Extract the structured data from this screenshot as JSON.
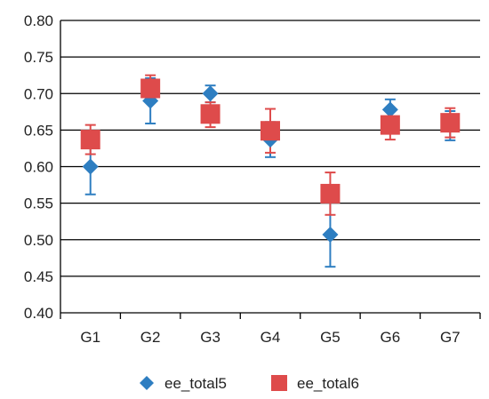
{
  "chart_data": {
    "type": "scatter",
    "title": "",
    "xlabel": "",
    "ylabel": "",
    "categories": [
      "G1",
      "G2",
      "G3",
      "G4",
      "G5",
      "G6",
      "G7"
    ],
    "ylim": [
      0.4,
      0.8
    ],
    "yticks": [
      "0.40",
      "0.45",
      "0.50",
      "0.55",
      "0.60",
      "0.65",
      "0.70",
      "0.75",
      "0.80"
    ],
    "grid": "horizontal",
    "legend_position": "bottom",
    "series": [
      {
        "name": "ee_total5",
        "marker": "diamond",
        "color": "#2E7EC1",
        "values": [
          0.6,
          0.69,
          0.7,
          0.637,
          0.507,
          0.678,
          0.66
        ],
        "error_low": [
          0.562,
          0.659,
          0.688,
          0.613,
          0.463,
          0.66,
          0.636
        ],
        "error_high": [
          0.638,
          0.721,
          0.711,
          0.661,
          0.551,
          0.692,
          0.676
        ]
      },
      {
        "name": "ee_total6",
        "marker": "square",
        "color": "#DE4B4B",
        "values": [
          0.637,
          0.707,
          0.672,
          0.649,
          0.563,
          0.657,
          0.66
        ],
        "error_low": [
          0.617,
          0.69,
          0.654,
          0.619,
          0.534,
          0.637,
          0.64
        ],
        "error_high": [
          0.657,
          0.725,
          0.688,
          0.679,
          0.592,
          0.677,
          0.68
        ]
      }
    ]
  }
}
